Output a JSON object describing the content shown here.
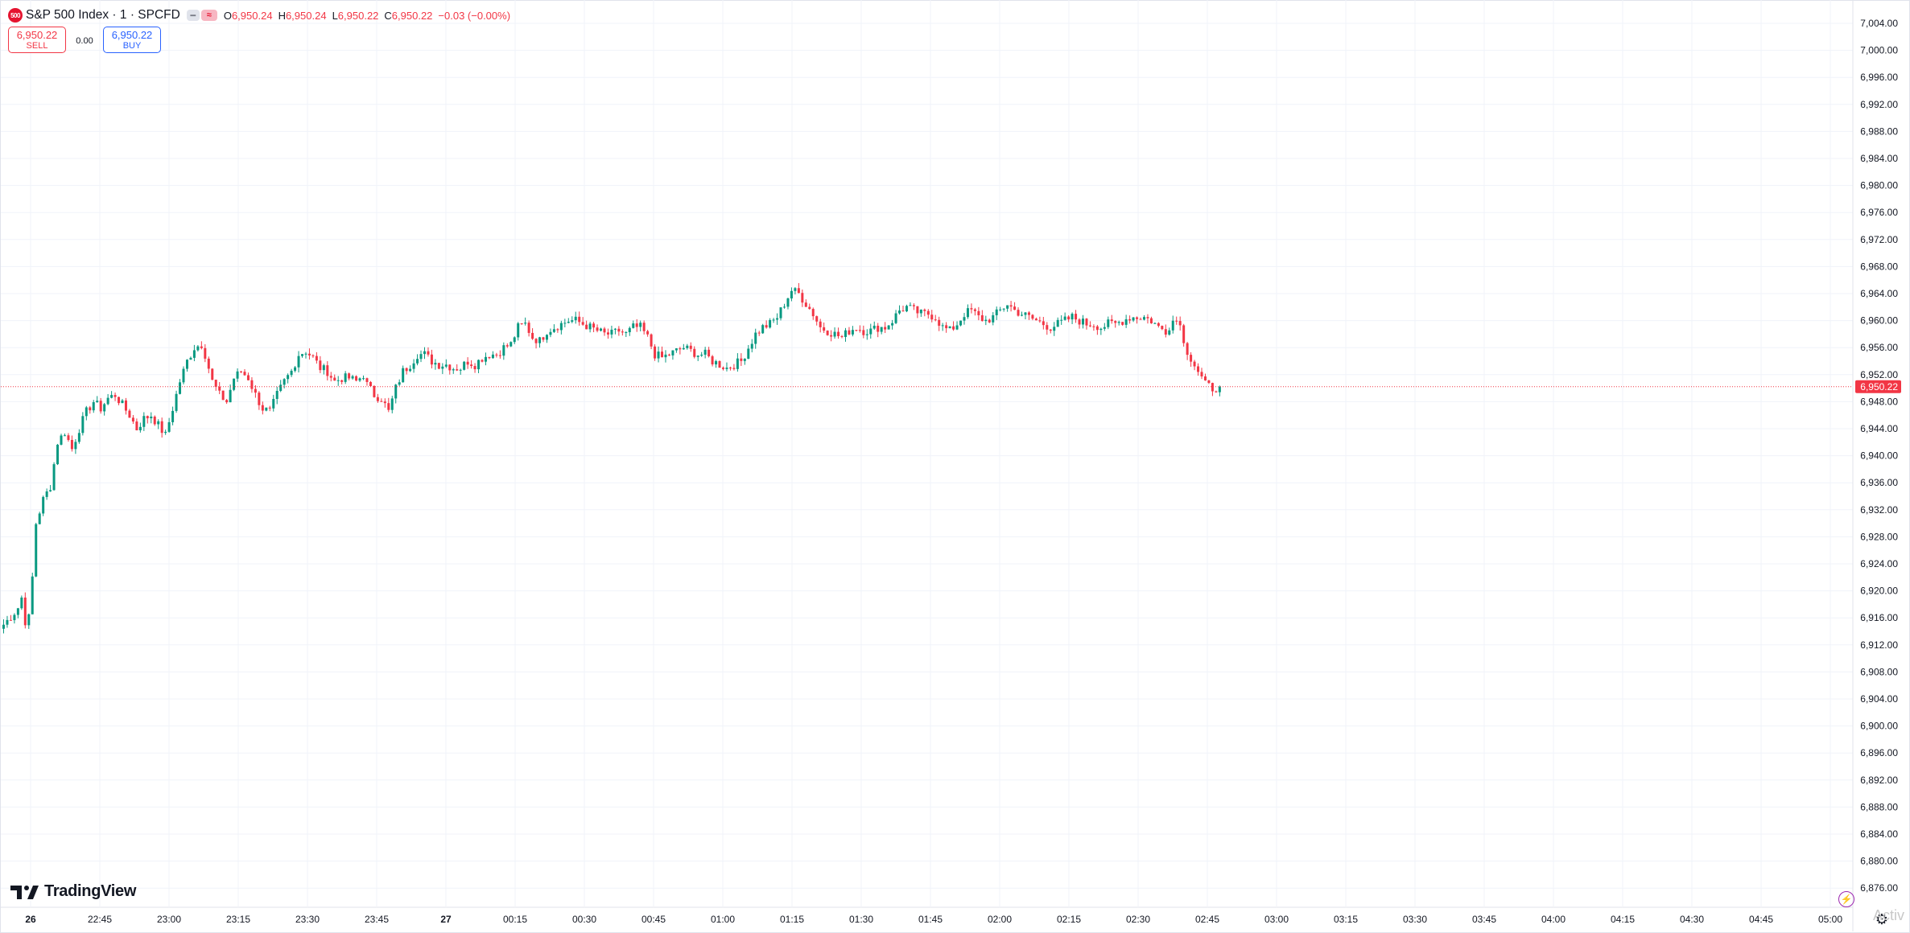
{
  "header": {
    "symbol_badge": "500",
    "title": "S&P 500 Index · 1 · SPCFD",
    "ohlc": {
      "o_label": "O",
      "o": "6,950.24",
      "h_label": "H",
      "h": "6,950.24",
      "l_label": "L",
      "l": "6,950.22",
      "c_label": "C",
      "c": "6,950.22"
    },
    "change": "−0.03 (−0.00%)"
  },
  "trade": {
    "sell_price": "6,950.22",
    "sell_label": "SELL",
    "spread": "0.00",
    "buy_price": "6,950.22",
    "buy_label": "BUY"
  },
  "branding": {
    "name": "TradingView"
  },
  "watermark": "Activ",
  "colors": {
    "up": "#089981",
    "down": "#f23645",
    "grid": "#f0f3fa",
    "price_line": "#f23645",
    "brand_red": "#e5132f"
  },
  "icons": {
    "logo": "tradingview-logo-icon",
    "bolt": "lightning-icon",
    "settings": "gear-icon"
  },
  "chart_data": {
    "type": "candlestick",
    "interval_minutes": 1,
    "x_ticks": [
      "26",
      "22:45",
      "23:00",
      "23:15",
      "23:30",
      "23:45",
      "27",
      "00:15",
      "00:30",
      "00:45",
      "01:00",
      "01:15",
      "01:30",
      "01:45",
      "02:00",
      "02:15",
      "02:30",
      "02:45",
      "03:00",
      "03:15",
      "03:30",
      "03:45",
      "04:00",
      "04:15",
      "04:30",
      "04:45",
      "05:00"
    ],
    "y_ticks": [
      "7,004.00",
      "7,000.00",
      "6,996.00",
      "6,992.00",
      "6,988.00",
      "6,984.00",
      "6,980.00",
      "6,976.00",
      "6,972.00",
      "6,968.00",
      "6,964.00",
      "6,960.00",
      "6,956.00",
      "6,952.00",
      "6,948.00",
      "6,944.00",
      "6,940.00",
      "6,936.00",
      "6,932.00",
      "6,928.00",
      "6,924.00",
      "6,920.00",
      "6,916.00",
      "6,912.00",
      "6,908.00",
      "6,904.00",
      "6,900.00",
      "6,896.00",
      "6,892.00",
      "6,888.00",
      "6,884.00",
      "6,880.00",
      "6,876.00"
    ],
    "ylim": [
      6874,
      7006
    ],
    "last_price": 6950.22,
    "last_price_label": "6,950.22",
    "path_anchors": [
      [
        0,
        6915.0
      ],
      [
        3,
        6916.8
      ],
      [
        4,
        6917.5
      ],
      [
        5,
        6919.0
      ],
      [
        6,
        6915.5
      ],
      [
        7,
        6916.0
      ],
      [
        8,
        6922.0
      ],
      [
        9,
        6930.0
      ],
      [
        11,
        6933.5
      ],
      [
        13,
        6935.5
      ],
      [
        15,
        6942.0
      ],
      [
        17,
        6943.5
      ],
      [
        19,
        6941.0
      ],
      [
        21,
        6944.0
      ],
      [
        23,
        6946.5
      ],
      [
        25,
        6948.0
      ],
      [
        27,
        6947.0
      ],
      [
        29,
        6948.5
      ],
      [
        31,
        6949.0
      ],
      [
        33,
        6947.5
      ],
      [
        35,
        6946.0
      ],
      [
        37,
        6944.0
      ],
      [
        39,
        6945.5
      ],
      [
        41,
        6946.0
      ],
      [
        43,
        6944.5
      ],
      [
        45,
        6943.0
      ],
      [
        47,
        6947.0
      ],
      [
        49,
        6951.0
      ],
      [
        51,
        6954.0
      ],
      [
        53,
        6956.0
      ],
      [
        55,
        6956.5
      ],
      [
        56,
        6955.0
      ],
      [
        58,
        6951.0
      ],
      [
        60,
        6949.0
      ],
      [
        62,
        6948.0
      ],
      [
        64,
        6951.5
      ],
      [
        66,
        6952.5
      ],
      [
        68,
        6951.5
      ],
      [
        70,
        6949.0
      ],
      [
        72,
        6947.0
      ],
      [
        74,
        6946.5
      ],
      [
        76,
        6949.0
      ],
      [
        78,
        6951.0
      ],
      [
        80,
        6952.5
      ],
      [
        82,
        6955.0
      ],
      [
        84,
        6955.5
      ],
      [
        86,
        6954.5
      ],
      [
        88,
        6953.0
      ],
      [
        90,
        6952.5
      ],
      [
        92,
        6951.0
      ],
      [
        94,
        6951.5
      ],
      [
        96,
        6951.5
      ],
      [
        98,
        6951.0
      ],
      [
        100,
        6952.0
      ],
      [
        101,
        6950.5
      ],
      [
        103,
        6949.0
      ],
      [
        105,
        6948.5
      ],
      [
        107,
        6946.5
      ],
      [
        109,
        6950.0
      ],
      [
        111,
        6952.5
      ],
      [
        113,
        6953.5
      ],
      [
        115,
        6955.0
      ],
      [
        117,
        6955.0
      ],
      [
        119,
        6954.0
      ],
      [
        121,
        6953.5
      ],
      [
        123,
        6953.5
      ],
      [
        125,
        6953.0
      ],
      [
        127,
        6953.0
      ],
      [
        129,
        6954.0
      ],
      [
        131,
        6953.5
      ],
      [
        133,
        6954.5
      ],
      [
        135,
        6955.0
      ],
      [
        137,
        6955.0
      ],
      [
        139,
        6956.0
      ],
      [
        141,
        6956.5
      ],
      [
        143,
        6959.0
      ],
      [
        145,
        6959.5
      ],
      [
        147,
        6957.5
      ],
      [
        149,
        6957.0
      ],
      [
        151,
        6958.5
      ],
      [
        153,
        6959.0
      ],
      [
        155,
        6959.5
      ],
      [
        157,
        6960.0
      ],
      [
        159,
        6960.0
      ],
      [
        161,
        6959.5
      ],
      [
        163,
        6959.0
      ],
      [
        165,
        6958.5
      ],
      [
        167,
        6958.0
      ],
      [
        169,
        6958.0
      ],
      [
        171,
        6958.5
      ],
      [
        173,
        6958.0
      ],
      [
        175,
        6959.0
      ],
      [
        177,
        6959.0
      ],
      [
        179,
        6957.5
      ],
      [
        181,
        6955.0
      ],
      [
        183,
        6954.5
      ],
      [
        185,
        6955.0
      ],
      [
        187,
        6955.5
      ],
      [
        189,
        6956.0
      ],
      [
        191,
        6955.5
      ],
      [
        193,
        6955.0
      ],
      [
        195,
        6955.0
      ],
      [
        197,
        6954.0
      ],
      [
        199,
        6953.5
      ],
      [
        201,
        6953.0
      ],
      [
        203,
        6953.5
      ],
      [
        205,
        6954.0
      ],
      [
        207,
        6956.0
      ],
      [
        209,
        6958.0
      ],
      [
        211,
        6959.0
      ],
      [
        213,
        6959.5
      ],
      [
        215,
        6960.5
      ],
      [
        217,
        6962.5
      ],
      [
        219,
        6964.5
      ],
      [
        221,
        6964.0
      ],
      [
        223,
        6962.5
      ],
      [
        225,
        6961.0
      ],
      [
        227,
        6959.0
      ],
      [
        229,
        6958.5
      ],
      [
        231,
        6958.0
      ],
      [
        233,
        6957.5
      ],
      [
        235,
        6958.5
      ],
      [
        237,
        6959.0
      ],
      [
        239,
        6958.5
      ],
      [
        241,
        6958.5
      ],
      [
        243,
        6959.0
      ],
      [
        245,
        6959.0
      ],
      [
        247,
        6960.0
      ],
      [
        249,
        6961.5
      ],
      [
        251,
        6962.0
      ],
      [
        253,
        6961.5
      ],
      [
        255,
        6961.0
      ],
      [
        257,
        6961.0
      ],
      [
        259,
        6960.5
      ],
      [
        261,
        6959.0
      ],
      [
        263,
        6958.5
      ],
      [
        265,
        6959.5
      ],
      [
        267,
        6961.0
      ],
      [
        269,
        6961.5
      ],
      [
        271,
        6960.5
      ],
      [
        273,
        6960.0
      ],
      [
        275,
        6960.5
      ],
      [
        277,
        6961.5
      ],
      [
        279,
        6962.5
      ],
      [
        281,
        6961.5
      ],
      [
        283,
        6961.0
      ],
      [
        285,
        6960.5
      ],
      [
        287,
        6960.0
      ],
      [
        289,
        6959.5
      ],
      [
        291,
        6959.0
      ],
      [
        293,
        6959.5
      ],
      [
        295,
        6960.0
      ],
      [
        297,
        6960.5
      ],
      [
        299,
        6960.0
      ],
      [
        301,
        6959.5
      ],
      [
        303,
        6959.5
      ],
      [
        305,
        6959.0
      ],
      [
        307,
        6959.5
      ],
      [
        309,
        6959.5
      ],
      [
        311,
        6960.0
      ],
      [
        313,
        6960.5
      ],
      [
        315,
        6960.5
      ],
      [
        317,
        6960.5
      ],
      [
        319,
        6960.0
      ],
      [
        321,
        6959.0
      ],
      [
        323,
        6958.5
      ],
      [
        325,
        6960.0
      ],
      [
        327,
        6960.0
      ],
      [
        328,
        6956.5
      ],
      [
        330,
        6954.5
      ],
      [
        332,
        6952.5
      ],
      [
        334,
        6950.5
      ],
      [
        336,
        6950.0
      ],
      [
        338,
        6950.2
      ]
    ]
  }
}
